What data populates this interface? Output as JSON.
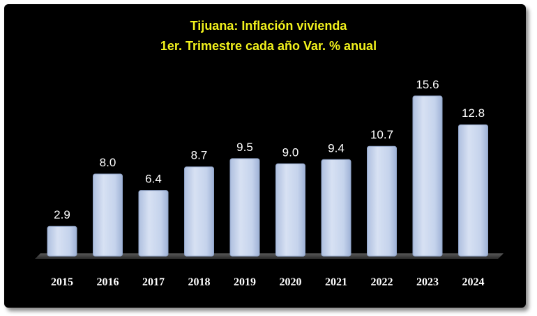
{
  "chart_data": {
    "type": "bar",
    "title": "Tijuana: Inflación vivienda",
    "subtitle": "1er. Trimestre cada año Var. % anual",
    "categories": [
      "2015",
      "2016",
      "2017",
      "2018",
      "2019",
      "2020",
      "2021",
      "2022",
      "2023",
      "2024"
    ],
    "values": [
      2.9,
      8.0,
      6.4,
      8.7,
      9.5,
      9.0,
      9.4,
      10.7,
      15.6,
      12.8
    ],
    "value_labels": [
      "2.9",
      "8.0",
      "6.4",
      "8.7",
      "9.5",
      "9.0",
      "9.4",
      "10.7",
      "15.6",
      "12.8"
    ],
    "xlabel": "",
    "ylabel": "",
    "ylim": [
      0,
      17
    ],
    "grid": false,
    "legend": "none",
    "colors": {
      "bar": "#c9d6ee",
      "bar_edge": "#8fa3c7",
      "title": "#f2f21c",
      "labels": "#ffffff",
      "background": "#000000"
    }
  }
}
